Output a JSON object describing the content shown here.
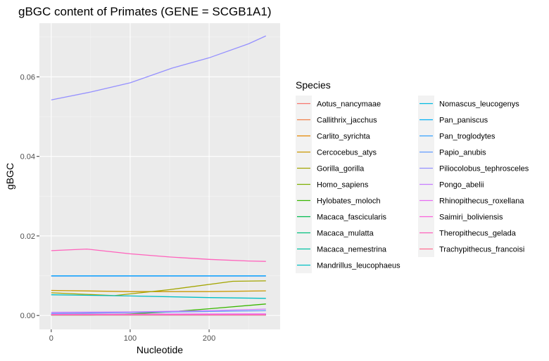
{
  "chart_data": {
    "type": "line",
    "title": "gBGC content of Primates (GENE = SCGB1A1)",
    "xlabel": "Nucleotide",
    "ylabel": "gBGC",
    "xlim": [
      -15,
      290
    ],
    "ylim": [
      -0.0035,
      0.0735
    ],
    "x_ticks": [
      0,
      100,
      200
    ],
    "x_tick_labels": [
      "0",
      "100",
      "200"
    ],
    "y_ticks": [
      0.0,
      0.02,
      0.04,
      0.06
    ],
    "y_tick_labels": [
      "0.00",
      "0.02",
      "0.04",
      "0.06"
    ],
    "grid": true,
    "legend": {
      "title": "Species",
      "placement": "right",
      "columns": 2
    },
    "series": [
      {
        "name": "Aotus_nancymaae",
        "color": "#F8766D",
        "x": [
          0,
          272
        ],
        "y": [
          0.0002,
          0.0002
        ]
      },
      {
        "name": "Callithrix_jacchus",
        "color": "#F07F4A",
        "x": [
          0,
          272
        ],
        "y": [
          0.0003,
          0.0003
        ]
      },
      {
        "name": "Carlito_syrichta",
        "color": "#E58700",
        "x": [
          0,
          272
        ],
        "y": [
          0.0002,
          0.0002
        ]
      },
      {
        "name": "Cercocebus_atys",
        "color": "#C99800",
        "x": [
          0,
          100,
          200,
          272
        ],
        "y": [
          0.0063,
          0.006,
          0.006,
          0.0062
        ]
      },
      {
        "name": "Gorilla_gorilla",
        "color": "#A3A500",
        "x": [
          0,
          80,
          150,
          230,
          272
        ],
        "y": [
          0.0057,
          0.005,
          0.0065,
          0.0086,
          0.0087
        ]
      },
      {
        "name": "Homo_sapiens",
        "color": "#7CAE00",
        "x": [
          0,
          272
        ],
        "y": [
          0.0003,
          0.0003
        ]
      },
      {
        "name": "Hylobates_moloch",
        "color": "#39B600",
        "x": [
          0,
          50,
          100,
          150,
          200,
          272
        ],
        "y": [
          0.0001,
          0.0001,
          0.0004,
          0.0009,
          0.0017,
          0.0029
        ]
      },
      {
        "name": "Macaca_fascicularis",
        "color": "#00BB4E",
        "x": [
          0,
          272
        ],
        "y": [
          0.0002,
          0.0003
        ]
      },
      {
        "name": "Macaca_mulatta",
        "color": "#00BF7D",
        "x": [
          0,
          272
        ],
        "y": [
          0.0002,
          0.0002
        ]
      },
      {
        "name": "Macaca_nemestrina",
        "color": "#00C1A3",
        "x": [
          0,
          272
        ],
        "y": [
          0.0001,
          0.0001
        ]
      },
      {
        "name": "Mandrillus_leucophaeus",
        "color": "#00BFC4",
        "x": [
          0,
          100,
          200,
          272
        ],
        "y": [
          0.0052,
          0.0049,
          0.0045,
          0.0043
        ]
      },
      {
        "name": "Nomascus_leucogenys",
        "color": "#00BAE0",
        "x": [
          0,
          272
        ],
        "y": [
          0.0002,
          0.0002
        ]
      },
      {
        "name": "Pan_paniscus",
        "color": "#00B0F6",
        "x": [
          0,
          272
        ],
        "y": [
          0.01,
          0.01
        ]
      },
      {
        "name": "Pan_troglodytes",
        "color": "#35A2FF",
        "x": [
          0,
          272
        ],
        "y": [
          0.0099,
          0.0099
        ]
      },
      {
        "name": "Papio_anubis",
        "color": "#619CFF",
        "x": [
          0,
          272
        ],
        "y": [
          0.0005,
          0.0012
        ]
      },
      {
        "name": "Piliocolobus_tephrosceles",
        "color": "#9590FF",
        "x": [
          0,
          50,
          100,
          153,
          200,
          250,
          272
        ],
        "y": [
          0.0542,
          0.0562,
          0.0585,
          0.0622,
          0.0648,
          0.0683,
          0.0703
        ]
      },
      {
        "name": "Pongo_abelii",
        "color": "#C77CFF",
        "x": [
          0,
          100,
          200,
          272
        ],
        "y": [
          0.0008,
          0.0009,
          0.0012,
          0.0016
        ]
      },
      {
        "name": "Rhinopithecus_roxellana",
        "color": "#E76BF3",
        "x": [
          0,
          272
        ],
        "y": [
          0.0003,
          0.0004
        ]
      },
      {
        "name": "Saimiri_boliviensis",
        "color": "#FA62DB",
        "x": [
          0,
          272
        ],
        "y": [
          0.0002,
          0.0002
        ]
      },
      {
        "name": "Theropithecus_gelada",
        "color": "#FF62BC",
        "x": [
          0,
          45,
          100,
          150,
          200,
          250,
          272
        ],
        "y": [
          0.0163,
          0.0167,
          0.0155,
          0.0147,
          0.0141,
          0.0137,
          0.0136
        ]
      },
      {
        "name": "Trachypithecus_francoisi",
        "color": "#FF6C91",
        "x": [
          0,
          272
        ],
        "y": [
          0.0001,
          0.0001
        ]
      }
    ]
  }
}
